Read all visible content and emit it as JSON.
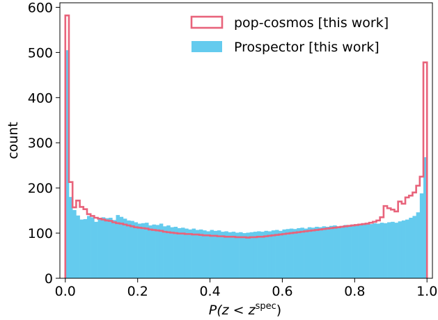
{
  "chart_data": {
    "type": "histogram",
    "xlabel": "P(z < z^spec)",
    "xlabel_parts": {
      "main": "P(z < z",
      "sup": "spec",
      "close": ")"
    },
    "ylabel": "count",
    "xlim": [
      -0.015,
      1.015
    ],
    "ylim": [
      0,
      610
    ],
    "xticks": [
      0.0,
      0.2,
      0.4,
      0.6,
      0.8,
      1.0
    ],
    "xtick_labels": [
      "0.0",
      "0.2",
      "0.4",
      "0.6",
      "0.8",
      "1.0"
    ],
    "yticks": [
      0,
      100,
      200,
      300,
      400,
      500,
      600
    ],
    "ytick_labels": [
      "0",
      "100",
      "200",
      "300",
      "400",
      "500",
      "600"
    ],
    "grid": false,
    "legend_position": "top-right",
    "bin_edges_start": 0.0,
    "bin_width": 0.01,
    "series": [
      {
        "name": "pop-cosmos [this work]",
        "style": "step",
        "color": "#E8637B",
        "values": [
          582,
          213,
          157,
          172,
          158,
          153,
          142,
          138,
          134,
          132,
          130,
          128,
          127,
          124,
          122,
          121,
          119,
          117,
          115,
          113,
          112,
          111,
          110,
          108,
          107,
          106,
          105,
          103,
          102,
          101,
          100,
          99,
          99,
          98,
          98,
          97,
          97,
          96,
          95,
          95,
          94,
          94,
          93,
          93,
          92,
          92,
          92,
          91,
          91,
          91,
          90,
          91,
          91,
          92,
          92,
          93,
          94,
          95,
          96,
          97,
          98,
          99,
          100,
          101,
          102,
          103,
          104,
          105,
          106,
          107,
          108,
          109,
          110,
          111,
          112,
          113,
          114,
          115,
          116,
          117,
          118,
          119,
          120,
          121,
          123,
          125,
          128,
          135,
          160,
          155,
          152,
          148,
          170,
          165,
          179,
          183,
          190,
          205,
          225,
          478
        ]
      },
      {
        "name": "Prospector [this work]",
        "style": "filled",
        "color": "#64CBEE",
        "values": [
          505,
          180,
          151,
          139,
          130,
          131,
          138,
          135,
          125,
          132,
          135,
          133,
          134,
          129,
          140,
          136,
          132,
          128,
          127,
          124,
          121,
          122,
          123,
          117,
          119,
          118,
          121,
          115,
          117,
          113,
          114,
          111,
          112,
          110,
          108,
          110,
          107,
          108,
          106,
          104,
          107,
          105,
          106,
          103,
          104,
          102,
          103,
          101,
          102,
          100,
          101,
          102,
          103,
          104,
          103,
          105,
          104,
          106,
          107,
          105,
          108,
          109,
          110,
          109,
          111,
          112,
          110,
          113,
          112,
          114,
          113,
          115,
          114,
          116,
          117,
          115,
          116,
          118,
          117,
          119,
          118,
          120,
          119,
          121,
          120,
          122,
          121,
          123,
          122,
          124,
          125,
          123,
          126,
          128,
          130,
          134,
          138,
          146,
          188,
          268
        ]
      }
    ]
  }
}
